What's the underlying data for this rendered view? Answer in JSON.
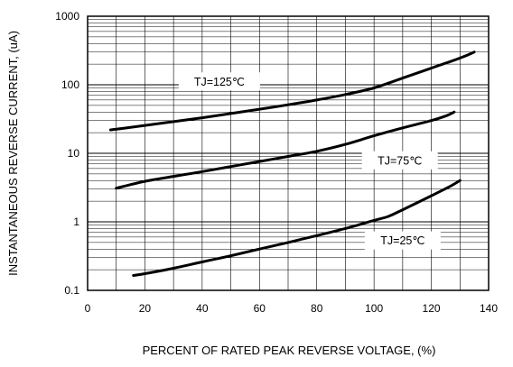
{
  "chart_data": {
    "type": "line",
    "xlabel": "PERCENT OF RATED PEAK REVERSE VOLTAGE, (%)",
    "ylabel": "INSTANTANEOUS REVERSE CURRENT, (uA)",
    "xlim": [
      0,
      140
    ],
    "ylim": [
      0.1,
      1000
    ],
    "y_scale": "log",
    "grid": true,
    "x_ticks": [
      "0",
      "20",
      "40",
      "60",
      "80",
      "100",
      "120",
      "140"
    ],
    "y_ticks": [
      "0.1",
      "1",
      "10",
      "100",
      "1000"
    ],
    "x_tick_values": [
      0,
      20,
      40,
      60,
      80,
      100,
      120,
      140
    ],
    "y_tick_values": [
      0.1,
      1,
      10,
      100,
      1000
    ],
    "series": [
      {
        "name": "TJ=125℃",
        "x": [
          8,
          12,
          20,
          30,
          40,
          50,
          60,
          70,
          80,
          90,
          100,
          110,
          120,
          130,
          135
        ],
        "y": [
          22,
          23,
          25.5,
          29,
          33,
          38,
          44,
          51,
          60,
          72,
          90,
          125,
          175,
          245,
          300
        ]
      },
      {
        "name": "TJ=75℃",
        "x": [
          10,
          14,
          20,
          30,
          40,
          50,
          60,
          70,
          80,
          90,
          100,
          110,
          120,
          125,
          128
        ],
        "y": [
          3.1,
          3.4,
          3.9,
          4.6,
          5.4,
          6.4,
          7.6,
          9,
          10.7,
          13.5,
          18,
          23.5,
          30,
          35,
          40
        ]
      },
      {
        "name": "TJ=25℃",
        "x": [
          16,
          20,
          30,
          40,
          50,
          60,
          70,
          80,
          90,
          100,
          105,
          110,
          120,
          126,
          130
        ],
        "y": [
          0.165,
          0.175,
          0.21,
          0.26,
          0.32,
          0.4,
          0.5,
          0.63,
          0.8,
          1.05,
          1.2,
          1.5,
          2.4,
          3.2,
          4
        ]
      }
    ]
  }
}
